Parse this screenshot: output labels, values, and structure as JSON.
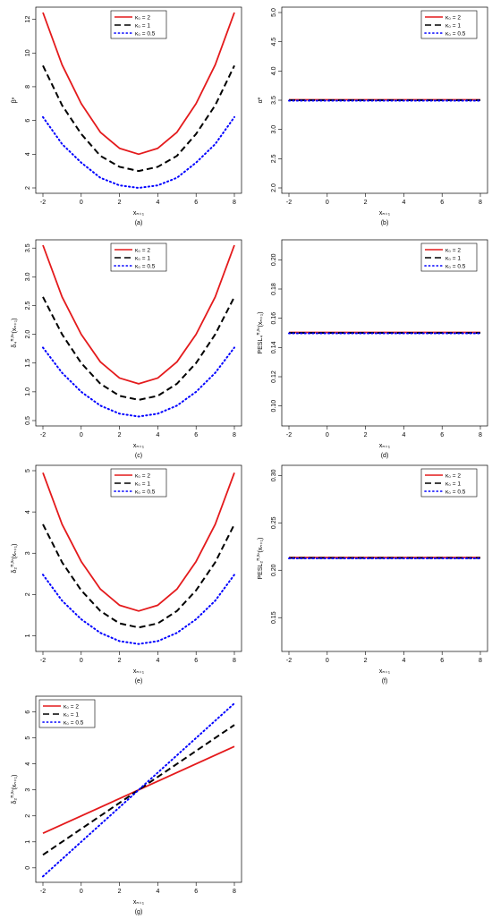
{
  "chart_data": [
    {
      "panel": "(a)",
      "type": "line",
      "xlabel": "xₙ₊₁",
      "ylabel": "β*",
      "xlim": [
        -2,
        8
      ],
      "ylim": [
        2,
        12.4
      ],
      "xticks": [
        -2,
        0,
        2,
        4,
        6,
        8
      ],
      "yticks": [
        2,
        4,
        6,
        8,
        10,
        12
      ],
      "legend": "top-center",
      "x": [
        -2,
        -1,
        0,
        1,
        2,
        3,
        4,
        5,
        6,
        7,
        8
      ],
      "series": [
        {
          "name": "κ₀ = 2",
          "color": "#e41a1c",
          "style": "solid",
          "values": [
            12.4,
            9.3,
            7.0,
            5.3,
            4.35,
            4.0,
            4.35,
            5.3,
            7.0,
            9.3,
            12.4
          ]
        },
        {
          "name": "κ₀ = 1",
          "color": "#000000",
          "style": "dashed",
          "values": [
            9.25,
            6.9,
            5.2,
            3.9,
            3.25,
            3.0,
            3.25,
            3.9,
            5.2,
            6.9,
            9.25
          ]
        },
        {
          "name": "κ₀ = 0.5",
          "color": "#0000ff",
          "style": "dotted",
          "values": [
            6.2,
            4.6,
            3.5,
            2.6,
            2.15,
            2.0,
            2.15,
            2.6,
            3.5,
            4.6,
            6.2
          ]
        }
      ]
    },
    {
      "panel": "(b)",
      "type": "line",
      "xlabel": "xₙ₊₁",
      "ylabel": "α*",
      "xlim": [
        -2,
        8
      ],
      "ylim": [
        2.0,
        5.0
      ],
      "xticks": [
        -2,
        0,
        2,
        4,
        6,
        8
      ],
      "yticks": [
        2.0,
        2.5,
        3.0,
        3.5,
        4.0,
        4.5,
        5.0
      ],
      "legend": "top-right",
      "x": [
        -2,
        8
      ],
      "series": [
        {
          "name": "κ₀ = 2",
          "color": "#e41a1c",
          "style": "solid",
          "values": [
            3.5,
            3.5
          ]
        },
        {
          "name": "κ₀ = 1",
          "color": "#000000",
          "style": "dashed",
          "values": [
            3.5,
            3.5
          ]
        },
        {
          "name": "κ₀ = 0.5",
          "color": "#0000ff",
          "style": "dotted",
          "values": [
            3.5,
            3.5
          ]
        }
      ]
    },
    {
      "panel": "(c)",
      "type": "line",
      "xlabel": "xₙ₊₁",
      "ylabel": "δ₄^{π,xₙ}(xₙ₊₁)",
      "xlim": [
        -2,
        8
      ],
      "ylim": [
        0.5,
        3.55
      ],
      "xticks": [
        -2,
        0,
        2,
        4,
        6,
        8
      ],
      "yticks": [
        0.5,
        1.0,
        1.5,
        2.0,
        2.5,
        3.0,
        3.5
      ],
      "legend": "top-center",
      "x": [
        -2,
        -1,
        0,
        1,
        2,
        3,
        4,
        5,
        6,
        7,
        8
      ],
      "series": [
        {
          "name": "κ₀ = 2",
          "color": "#e41a1c",
          "style": "solid",
          "values": [
            3.55,
            2.65,
            2.0,
            1.52,
            1.24,
            1.14,
            1.24,
            1.52,
            2.0,
            2.65,
            3.55
          ]
        },
        {
          "name": "κ₀ = 1",
          "color": "#000000",
          "style": "dashed",
          "values": [
            2.65,
            2.0,
            1.5,
            1.14,
            0.93,
            0.86,
            0.93,
            1.14,
            1.5,
            2.0,
            2.65
          ]
        },
        {
          "name": "κ₀ = 0.5",
          "color": "#0000ff",
          "style": "dotted",
          "values": [
            1.77,
            1.33,
            1.0,
            0.76,
            0.62,
            0.57,
            0.62,
            0.76,
            1.0,
            1.33,
            1.77
          ]
        }
      ]
    },
    {
      "panel": "(d)",
      "type": "line",
      "xlabel": "xₙ₊₁",
      "ylabel": "PESL₄^{π,xₙ}(xₙ₊₁)",
      "xlim": [
        -2,
        8
      ],
      "ylim": [
        0.09,
        0.21
      ],
      "xticks": [
        -2,
        0,
        2,
        4,
        6,
        8
      ],
      "yticks": [
        0.1,
        0.12,
        0.14,
        0.16,
        0.18,
        0.2
      ],
      "legend": "top-right",
      "x": [
        -2,
        8
      ],
      "series": [
        {
          "name": "κ₀ = 2",
          "color": "#e41a1c",
          "style": "solid",
          "values": [
            0.15,
            0.15
          ]
        },
        {
          "name": "κ₀ = 1",
          "color": "#000000",
          "style": "dashed",
          "values": [
            0.15,
            0.15
          ]
        },
        {
          "name": "κ₀ = 0.5",
          "color": "#0000ff",
          "style": "dotted",
          "values": [
            0.15,
            0.15
          ]
        }
      ]
    },
    {
      "panel": "(e)",
      "type": "line",
      "xlabel": "xₙ₊₁",
      "ylabel": "δ₂^{π,xₙ}(xₙ₊₁)",
      "xlim": [
        -2,
        8
      ],
      "ylim": [
        0.75,
        5.0
      ],
      "xticks": [
        -2,
        0,
        2,
        4,
        6,
        8
      ],
      "yticks": [
        1,
        2,
        3,
        4,
        5
      ],
      "legend": "top-center",
      "x": [
        -2,
        -1,
        0,
        1,
        2,
        3,
        4,
        5,
        6,
        7,
        8
      ],
      "series": [
        {
          "name": "κ₀ = 2",
          "color": "#e41a1c",
          "style": "solid",
          "values": [
            4.95,
            3.7,
            2.8,
            2.13,
            1.74,
            1.6,
            1.74,
            2.13,
            2.8,
            3.7,
            4.95
          ]
        },
        {
          "name": "κ₀ = 1",
          "color": "#000000",
          "style": "dashed",
          "values": [
            3.7,
            2.78,
            2.1,
            1.6,
            1.3,
            1.2,
            1.3,
            1.6,
            2.1,
            2.78,
            3.7
          ]
        },
        {
          "name": "κ₀ = 0.5",
          "color": "#0000ff",
          "style": "dotted",
          "values": [
            2.48,
            1.85,
            1.4,
            1.07,
            0.87,
            0.8,
            0.87,
            1.07,
            1.4,
            1.85,
            2.48
          ]
        }
      ]
    },
    {
      "panel": "(f)",
      "type": "line",
      "xlabel": "xₙ₊₁",
      "ylabel": "PESL₂^{π,xₙ}(xₙ₊₁)",
      "xlim": [
        -2,
        8
      ],
      "ylim": [
        0.12,
        0.305
      ],
      "xticks": [
        -2,
        0,
        2,
        4,
        6,
        8
      ],
      "yticks": [
        0.15,
        0.2,
        0.25,
        0.3
      ],
      "legend": "top-right",
      "x": [
        -2,
        8
      ],
      "series": [
        {
          "name": "κ₀ = 2",
          "color": "#e41a1c",
          "style": "solid",
          "values": [
            0.213,
            0.213
          ]
        },
        {
          "name": "κ₀ = 1",
          "color": "#000000",
          "style": "dashed",
          "values": [
            0.213,
            0.213
          ]
        },
        {
          "name": "κ₀ = 0.5",
          "color": "#0000ff",
          "style": "dotted",
          "values": [
            0.213,
            0.213
          ]
        }
      ]
    },
    {
      "panel": "(g)",
      "type": "line",
      "xlabel": "xₙ₊₁",
      "ylabel": "δ₂^{π,xₙ}(xₙ₊₁)",
      "xlim": [
        -2,
        8
      ],
      "ylim": [
        -0.35,
        6.4
      ],
      "xticks": [
        -2,
        0,
        2,
        4,
        6,
        8
      ],
      "yticks": [
        0,
        1,
        2,
        3,
        4,
        5,
        6
      ],
      "legend": "top-left",
      "x": [
        -2,
        8
      ],
      "series": [
        {
          "name": "κ₀ = 2",
          "color": "#e41a1c",
          "style": "solid",
          "values": [
            1.33,
            4.67
          ]
        },
        {
          "name": "κ₀ = 1",
          "color": "#000000",
          "style": "dashed",
          "values": [
            0.5,
            5.5
          ]
        },
        {
          "name": "κ₀ = 0.5",
          "color": "#0000ff",
          "style": "dotted",
          "values": [
            -0.33,
            6.33
          ]
        }
      ]
    }
  ]
}
